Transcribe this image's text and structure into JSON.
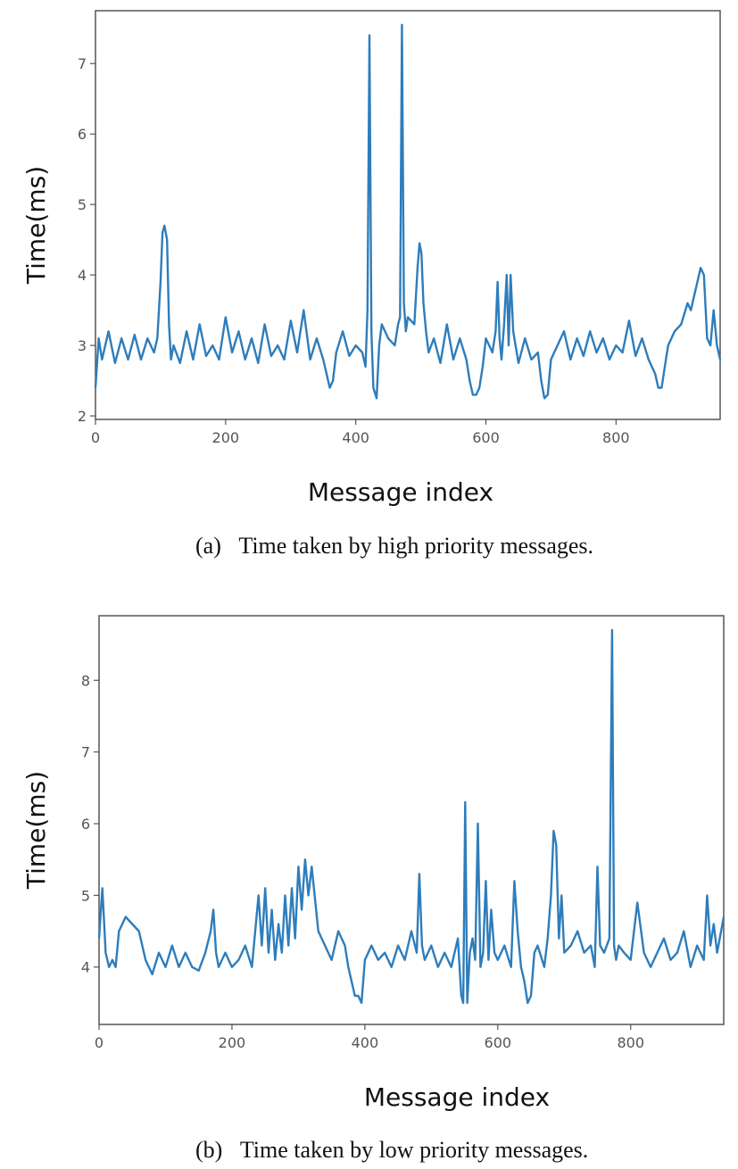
{
  "chart_data": [
    {
      "type": "line",
      "title": "",
      "caption": "(a)   Time taken by high priority messages.",
      "xlabel": "Message index",
      "ylabel": "Time(ms)",
      "xlim": [
        0,
        960
      ],
      "ylim": [
        1.95,
        7.75
      ],
      "xticks": [
        0,
        200,
        400,
        600,
        800
      ],
      "yticks": [
        2,
        3,
        4,
        5,
        6,
        7
      ],
      "grid": false,
      "color": "#2e7dbb",
      "series": [
        {
          "x": [
            0,
            5,
            10,
            20,
            30,
            40,
            50,
            60,
            70,
            80,
            90,
            95,
            100,
            103,
            106,
            110,
            113,
            116,
            120,
            130,
            140,
            150,
            160,
            170,
            180,
            190,
            200,
            210,
            220,
            230,
            240,
            250,
            260,
            270,
            280,
            290,
            300,
            310,
            320,
            330,
            340,
            350,
            355,
            360,
            365,
            370,
            380,
            390,
            400,
            410,
            415,
            418,
            421,
            424,
            427,
            432,
            436,
            440,
            450,
            460,
            465,
            468,
            471,
            474,
            477,
            480,
            490,
            495,
            498,
            501,
            504,
            508,
            512,
            520,
            530,
            540,
            550,
            560,
            570,
            575,
            580,
            585,
            590,
            595,
            600,
            610,
            615,
            618,
            621,
            624,
            628,
            632,
            635,
            638,
            642,
            650,
            660,
            670,
            680,
            685,
            690,
            695,
            700,
            710,
            720,
            730,
            740,
            750,
            760,
            770,
            780,
            790,
            800,
            810,
            820,
            830,
            840,
            850,
            860,
            865,
            870,
            875,
            880,
            890,
            900,
            910,
            915,
            920,
            925,
            930,
            935,
            940,
            945,
            950,
            955,
            960
          ],
          "y": [
            2.4,
            3.1,
            2.8,
            3.2,
            2.75,
            3.1,
            2.8,
            3.15,
            2.8,
            3.1,
            2.9,
            3.1,
            3.9,
            4.6,
            4.7,
            4.5,
            3.3,
            2.8,
            3.0,
            2.75,
            3.2,
            2.8,
            3.3,
            2.85,
            3.0,
            2.8,
            3.4,
            2.9,
            3.2,
            2.8,
            3.1,
            2.75,
            3.3,
            2.85,
            3.0,
            2.8,
            3.35,
            2.9,
            3.5,
            2.8,
            3.1,
            2.8,
            2.6,
            2.4,
            2.5,
            2.9,
            3.2,
            2.85,
            3.0,
            2.9,
            2.7,
            3.5,
            7.4,
            3.2,
            2.4,
            2.25,
            3.0,
            3.3,
            3.1,
            3.0,
            3.3,
            3.4,
            7.55,
            3.6,
            3.2,
            3.4,
            3.3,
            4.1,
            4.45,
            4.3,
            3.6,
            3.2,
            2.9,
            3.1,
            2.75,
            3.3,
            2.8,
            3.1,
            2.8,
            2.5,
            2.3,
            2.3,
            2.4,
            2.7,
            3.1,
            2.9,
            3.2,
            3.9,
            3.1,
            2.8,
            3.3,
            4.0,
            3.0,
            4.0,
            3.2,
            2.75,
            3.1,
            2.8,
            2.9,
            2.5,
            2.25,
            2.3,
            2.8,
            3.0,
            3.2,
            2.8,
            3.1,
            2.85,
            3.2,
            2.9,
            3.1,
            2.8,
            3.0,
            2.9,
            3.35,
            2.85,
            3.1,
            2.8,
            2.6,
            2.4,
            2.4,
            2.7,
            3.0,
            3.2,
            3.3,
            3.6,
            3.5,
            3.7,
            3.9,
            4.1,
            4.0,
            3.1,
            3.0,
            3.5,
            3.0,
            2.8
          ]
        }
      ]
    },
    {
      "type": "line",
      "title": "",
      "caption": "(b)   Time taken by low priority messages.",
      "xlabel": "Message index",
      "ylabel": "Time(ms)",
      "xlim": [
        0,
        940
      ],
      "ylim": [
        3.2,
        8.9
      ],
      "xticks": [
        0,
        200,
        400,
        600,
        800
      ],
      "yticks": [
        4,
        5,
        6,
        7,
        8
      ],
      "grid": false,
      "color": "#2e7dbb",
      "series": [
        {
          "x": [
            0,
            5,
            10,
            15,
            20,
            25,
            30,
            40,
            50,
            60,
            70,
            80,
            90,
            100,
            110,
            120,
            130,
            140,
            150,
            160,
            168,
            172,
            176,
            180,
            190,
            200,
            210,
            220,
            230,
            235,
            240,
            245,
            250,
            255,
            260,
            265,
            270,
            275,
            280,
            285,
            290,
            295,
            300,
            305,
            310,
            315,
            320,
            330,
            340,
            350,
            360,
            370,
            375,
            380,
            385,
            390,
            395,
            400,
            410,
            420,
            430,
            440,
            450,
            460,
            470,
            478,
            482,
            486,
            490,
            500,
            510,
            520,
            530,
            540,
            545,
            548,
            551,
            554,
            558,
            562,
            566,
            570,
            574,
            578,
            582,
            586,
            590,
            595,
            600,
            610,
            620,
            625,
            630,
            635,
            640,
            645,
            650,
            655,
            660,
            670,
            675,
            680,
            684,
            688,
            692,
            696,
            700,
            710,
            720,
            730,
            740,
            746,
            750,
            754,
            760,
            768,
            772,
            775,
            778,
            782,
            790,
            800,
            810,
            820,
            830,
            840,
            850,
            860,
            870,
            880,
            890,
            900,
            910,
            915,
            920,
            925,
            930,
            940
          ],
          "y": [
            4.4,
            5.1,
            4.2,
            4.0,
            4.1,
            4.0,
            4.5,
            4.7,
            4.6,
            4.5,
            4.1,
            3.9,
            4.2,
            4.0,
            4.3,
            4.0,
            4.2,
            4.0,
            3.95,
            4.2,
            4.5,
            4.8,
            4.2,
            4.0,
            4.2,
            4.0,
            4.1,
            4.3,
            4.0,
            4.5,
            5.0,
            4.3,
            5.1,
            4.2,
            4.8,
            4.1,
            4.6,
            4.2,
            5.0,
            4.3,
            5.1,
            4.4,
            5.4,
            4.8,
            5.5,
            5.0,
            5.4,
            4.5,
            4.3,
            4.1,
            4.5,
            4.3,
            4.0,
            3.8,
            3.6,
            3.6,
            3.5,
            4.1,
            4.3,
            4.1,
            4.2,
            4.0,
            4.3,
            4.1,
            4.5,
            4.2,
            5.3,
            4.3,
            4.1,
            4.3,
            4.0,
            4.2,
            4.0,
            4.4,
            3.6,
            3.5,
            6.3,
            3.5,
            4.2,
            4.4,
            4.1,
            6.0,
            4.0,
            4.2,
            5.2,
            4.1,
            4.8,
            4.2,
            4.1,
            4.3,
            4.0,
            5.2,
            4.5,
            4.0,
            3.8,
            3.5,
            3.6,
            4.2,
            4.3,
            4.0,
            4.4,
            5.0,
            5.9,
            5.7,
            4.4,
            5.0,
            4.2,
            4.3,
            4.5,
            4.2,
            4.3,
            4.0,
            5.4,
            4.3,
            4.2,
            4.4,
            8.7,
            4.3,
            4.1,
            4.3,
            4.2,
            4.1,
            4.9,
            4.2,
            4.0,
            4.2,
            4.4,
            4.1,
            4.2,
            4.5,
            4.0,
            4.3,
            4.1,
            5.0,
            4.3,
            4.6,
            4.2,
            4.7
          ]
        }
      ]
    }
  ]
}
